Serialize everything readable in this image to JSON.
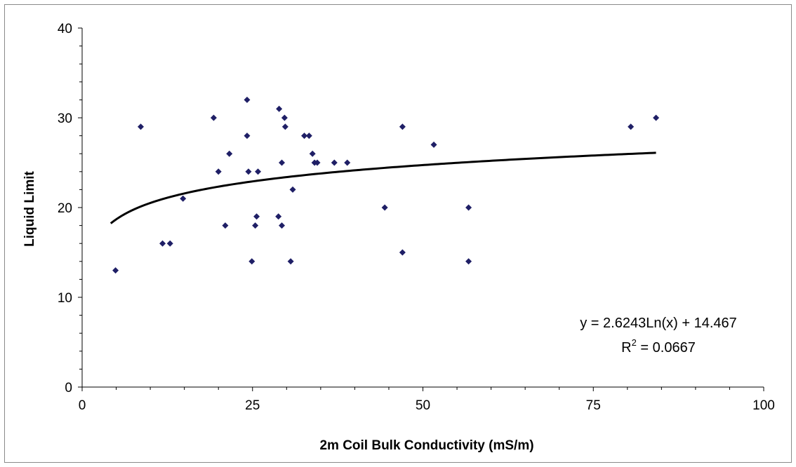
{
  "chart_data": {
    "type": "scatter",
    "title": "",
    "xlabel": "2m Coil Bulk Conductivity (mS/m)",
    "ylabel": "Liquid Limit",
    "xlim": [
      0,
      100
    ],
    "ylim": [
      0,
      40
    ],
    "xticks": [
      "0",
      "25",
      "50",
      "75",
      "100"
    ],
    "yticks": [
      "0",
      "10",
      "20",
      "30",
      "40"
    ],
    "grid": false,
    "legend": "none",
    "marker_color": "#1f1f66",
    "trend_color": "#000000",
    "series": [
      {
        "points": [
          {
            "x": 4.9,
            "y": 13
          },
          {
            "x": 8.6,
            "y": 29
          },
          {
            "x": 11.8,
            "y": 16
          },
          {
            "x": 12.9,
            "y": 16
          },
          {
            "x": 14.8,
            "y": 21
          },
          {
            "x": 19.3,
            "y": 30
          },
          {
            "x": 20.0,
            "y": 24
          },
          {
            "x": 21.0,
            "y": 18
          },
          {
            "x": 21.6,
            "y": 26
          },
          {
            "x": 24.2,
            "y": 32
          },
          {
            "x": 24.2,
            "y": 28
          },
          {
            "x": 24.4,
            "y": 24
          },
          {
            "x": 24.9,
            "y": 14
          },
          {
            "x": 25.4,
            "y": 18
          },
          {
            "x": 25.6,
            "y": 19
          },
          {
            "x": 25.8,
            "y": 24
          },
          {
            "x": 28.8,
            "y": 19
          },
          {
            "x": 28.9,
            "y": 31
          },
          {
            "x": 29.3,
            "y": 25
          },
          {
            "x": 29.3,
            "y": 18
          },
          {
            "x": 29.7,
            "y": 30
          },
          {
            "x": 29.8,
            "y": 29
          },
          {
            "x": 30.6,
            "y": 14
          },
          {
            "x": 30.9,
            "y": 22
          },
          {
            "x": 32.6,
            "y": 28
          },
          {
            "x": 33.3,
            "y": 28
          },
          {
            "x": 33.8,
            "y": 26
          },
          {
            "x": 34.1,
            "y": 25
          },
          {
            "x": 34.5,
            "y": 25
          },
          {
            "x": 37.0,
            "y": 25
          },
          {
            "x": 38.9,
            "y": 25
          },
          {
            "x": 44.4,
            "y": 20
          },
          {
            "x": 47.0,
            "y": 29
          },
          {
            "x": 47.0,
            "y": 15
          },
          {
            "x": 51.6,
            "y": 27
          },
          {
            "x": 56.7,
            "y": 20
          },
          {
            "x": 56.7,
            "y": 14
          },
          {
            "x": 80.5,
            "y": 29
          },
          {
            "x": 84.2,
            "y": 30
          }
        ]
      }
    ],
    "trendline": {
      "type": "logarithmic",
      "a": 2.6243,
      "b": 14.467,
      "x_range": [
        4.2,
        84.2
      ]
    },
    "annotations": {
      "equation": "y = 2.6243Ln(x) + 14.467",
      "r2_prefix": "R",
      "r2_sup": "2",
      "r2_value": " = 0.0667"
    }
  }
}
